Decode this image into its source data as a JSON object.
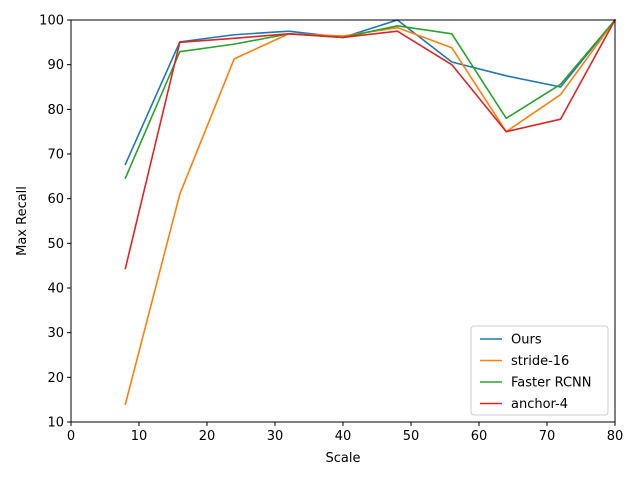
{
  "chart_data": {
    "type": "line",
    "title": "",
    "xlabel": "Scale",
    "ylabel": "Max Recall",
    "xlim": [
      0,
      80
    ],
    "ylim": [
      10,
      100
    ],
    "xticks": [
      0,
      10,
      20,
      30,
      40,
      50,
      60,
      70,
      80
    ],
    "yticks": [
      10,
      20,
      30,
      40,
      50,
      60,
      70,
      80,
      90,
      100
    ],
    "grid": false,
    "legend_position": "lower-right",
    "series": [
      {
        "name": "Ours",
        "color": "#1f77b4",
        "x": [
          8,
          16,
          24,
          32,
          40,
          48,
          56,
          64,
          72,
          80
        ],
        "y": [
          67.7,
          95.1,
          96.7,
          97.5,
          96.1,
          100.0,
          90.6,
          87.5,
          85.0,
          100.0
        ]
      },
      {
        "name": "stride-16",
        "color": "#ff7f0e",
        "x": [
          8,
          16,
          24,
          32,
          40,
          48,
          56,
          64,
          72,
          80
        ],
        "y": [
          14.0,
          61.0,
          91.3,
          96.9,
          96.4,
          98.3,
          93.8,
          75.0,
          83.3,
          100.0
        ]
      },
      {
        "name": "Faster RCNN",
        "color": "#2ca02c",
        "x": [
          8,
          16,
          24,
          32,
          40,
          48,
          56,
          64,
          72,
          80
        ],
        "y": [
          64.6,
          92.9,
          94.6,
          96.9,
          96.1,
          98.7,
          96.9,
          78.0,
          85.6,
          100.0
        ]
      },
      {
        "name": "anchor-4",
        "color": "#d62728",
        "x": [
          8,
          16,
          24,
          32,
          40,
          48,
          56,
          64,
          72,
          80
        ],
        "y": [
          44.4,
          95.0,
          95.9,
          96.9,
          96.1,
          97.5,
          90.0,
          75.0,
          77.8,
          100.0
        ]
      }
    ]
  }
}
